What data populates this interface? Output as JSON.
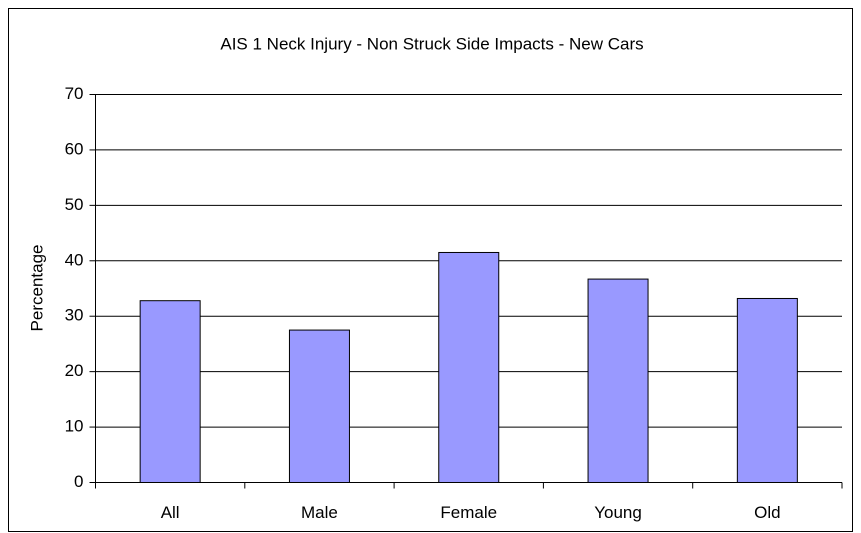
{
  "chart_data": {
    "type": "bar",
    "title": "AIS 1 Neck Injury - Non Struck Side Impacts - New Cars",
    "y_label": "Percentage",
    "categories": [
      "All",
      "Male",
      "Female",
      "Young",
      "Old"
    ],
    "values": [
      32.8,
      27.5,
      41.5,
      36.7,
      33.2
    ],
    "color": "#9999ff",
    "ylim": [
      0,
      70
    ],
    "yticks": [
      0,
      10,
      20,
      30,
      40,
      50,
      60,
      70
    ],
    "grid": true
  }
}
